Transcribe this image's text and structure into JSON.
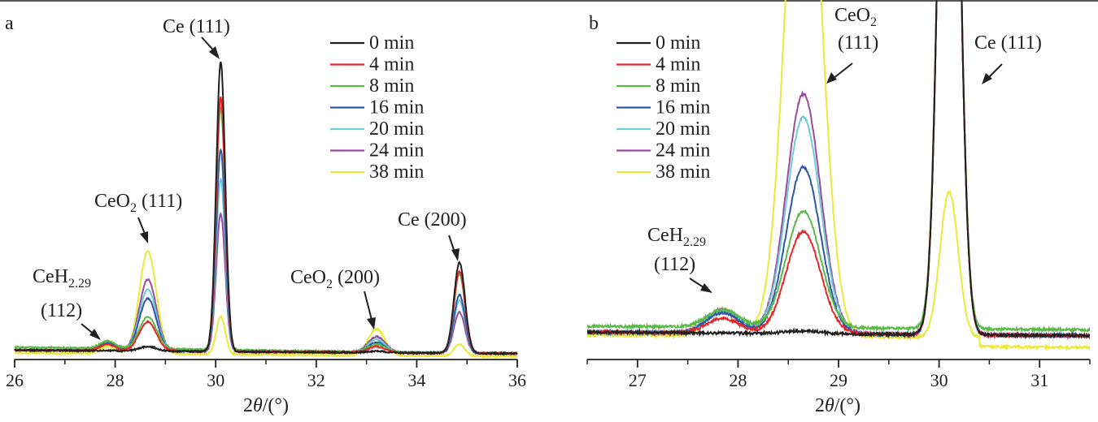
{
  "colors": {
    "0 min": "#231f20",
    "4 min": "#e8262a",
    "8 min": "#5bb948",
    "16 min": "#2e57a6",
    "20 min": "#6fcbd6",
    "24 min": "#9b4b9e",
    "38 min": "#eaea3a",
    "axis": "#231f20"
  },
  "chart_data": [
    {
      "type": "line",
      "panel_label": "a",
      "xlabel": {
        "pre": "2",
        "var": "θ",
        "post": "/(°)"
      },
      "xlim": [
        26,
        36
      ],
      "xticks": [
        26,
        28,
        30,
        32,
        34,
        36
      ],
      "ylim": [
        0,
        100
      ],
      "legend": [
        "0 min",
        "4 min",
        "8 min",
        "16 min",
        "20 min",
        "24 min",
        "38 min"
      ],
      "legend_position": "top-right",
      "peaks": {
        "28.65": [
          1.5,
          10,
          11,
          18,
          21,
          24.5,
          35
        ],
        "30.1": [
          99,
          87,
          83,
          69,
          59,
          47,
          13
        ],
        "33.2": [
          0.5,
          2,
          2.5,
          3.5,
          4.5,
          5.5,
          9
        ],
        "34.85": [
          31,
          28,
          27,
          20,
          18,
          14,
          4
        ],
        "27.85": [
          0,
          2.2,
          2.5,
          2.8,
          3,
          3.2,
          2.5
        ]
      },
      "annotations": [
        {
          "main": "Ce (111)",
          "sub": "",
          "tail": ""
        },
        {
          "main": "CeO",
          "sub": "2",
          "tail": " (111)"
        },
        {
          "main": "CeO",
          "sub": "2",
          "tail": " (200)"
        },
        {
          "main": "Ce (200)",
          "sub": "",
          "tail": ""
        },
        {
          "main": "CeH",
          "sub": "2.29",
          "tail": "",
          "line2": "(112)"
        }
      ]
    },
    {
      "type": "line",
      "panel_label": "b",
      "xlabel": {
        "pre": "2",
        "var": "θ",
        "post": "/(°)"
      },
      "xlim": [
        26.5,
        31.5
      ],
      "xticks": [
        27,
        28,
        29,
        30,
        31
      ],
      "ylim": [
        0,
        100
      ],
      "legend": [
        "0 min",
        "4 min",
        "8 min",
        "16 min",
        "20 min",
        "24 min",
        "38 min"
      ],
      "legend_position": "top-left",
      "peaks": {
        "28.65": [
          1,
          35,
          40,
          57,
          74,
          82,
          200
        ],
        "30.1": [
          300,
          300,
          300,
          300,
          300,
          300,
          50
        ],
        "27.85": [
          0,
          5,
          6,
          7,
          7.5,
          8,
          9
        ]
      },
      "annotations": [
        {
          "main": "CeO",
          "sub": "2",
          "tail": "",
          "line2": "(111)"
        },
        {
          "main": "Ce (111)",
          "sub": "",
          "tail": ""
        },
        {
          "main": "CeH",
          "sub": "2.29",
          "tail": "",
          "line2": "(112)"
        }
      ]
    }
  ]
}
